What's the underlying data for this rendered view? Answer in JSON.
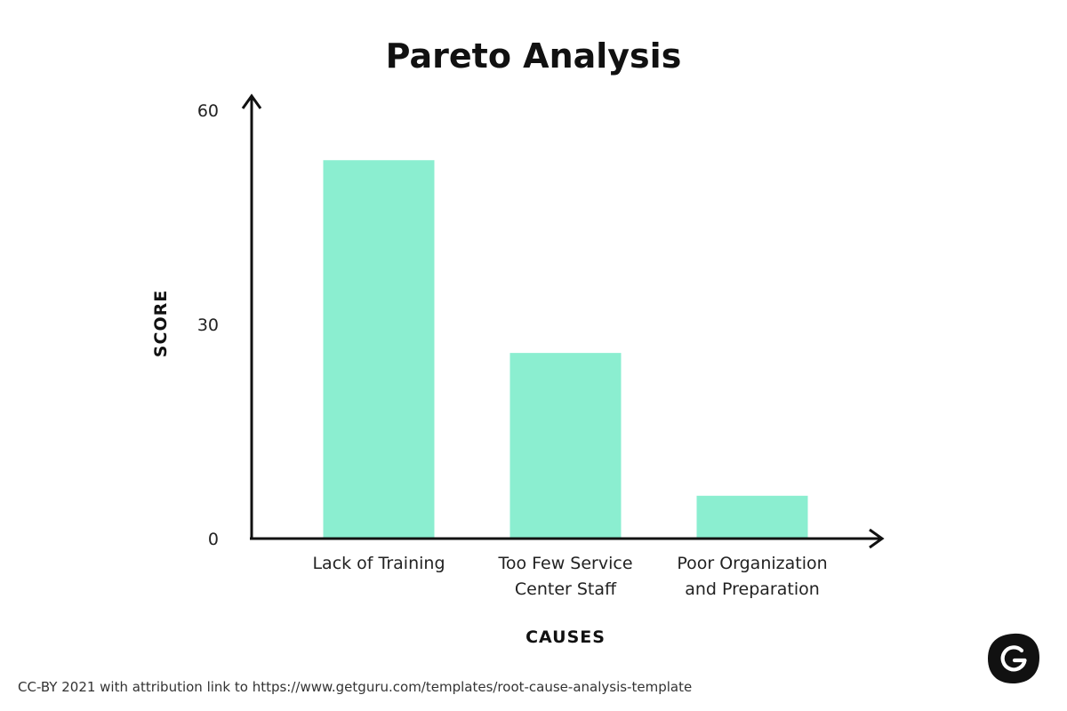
{
  "chart_data": {
    "type": "bar",
    "title": "Pareto Analysis",
    "xlabel": "CAUSES",
    "ylabel": "SCORE",
    "categories": [
      [
        "Lack of Training"
      ],
      [
        "Too Few Service",
        "Center Staff"
      ],
      [
        "Poor Organization",
        "and Preparation"
      ]
    ],
    "values": [
      53,
      26,
      6
    ],
    "ylim": [
      0,
      60
    ],
    "yticks": [
      0,
      30,
      60
    ],
    "grid": false,
    "legend": "none",
    "bar_color": "#8BEED0"
  },
  "footer": {
    "attribution": "CC-BY 2021 with attribution link to https://www.getguru.com/templates/root-cause-analysis-template"
  },
  "logo": {
    "icon": "guru-logo-icon"
  }
}
